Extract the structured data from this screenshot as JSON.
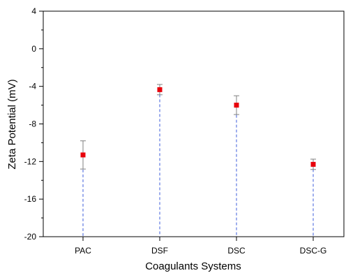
{
  "chart_data": {
    "type": "scatter",
    "xlabel": "Coagulants Systems",
    "ylabel": "Zeta Potential (mV)",
    "categories": [
      "PAC",
      "DSF",
      "DSC",
      "DSC-G"
    ],
    "series": [
      {
        "values": [
          -11.3,
          -4.35,
          -6.0,
          -12.3
        ],
        "errors": [
          1.5,
          0.55,
          1.0,
          0.55
        ],
        "marker_color": "#e8000b",
        "error_color": "#808080",
        "drop_line_color": "#3b5bdb"
      }
    ],
    "ylim": [
      -20,
      4
    ],
    "yticks": [
      "4",
      "0",
      "-4",
      "-8",
      "-12",
      "-16",
      "-20"
    ],
    "grid": false
  }
}
